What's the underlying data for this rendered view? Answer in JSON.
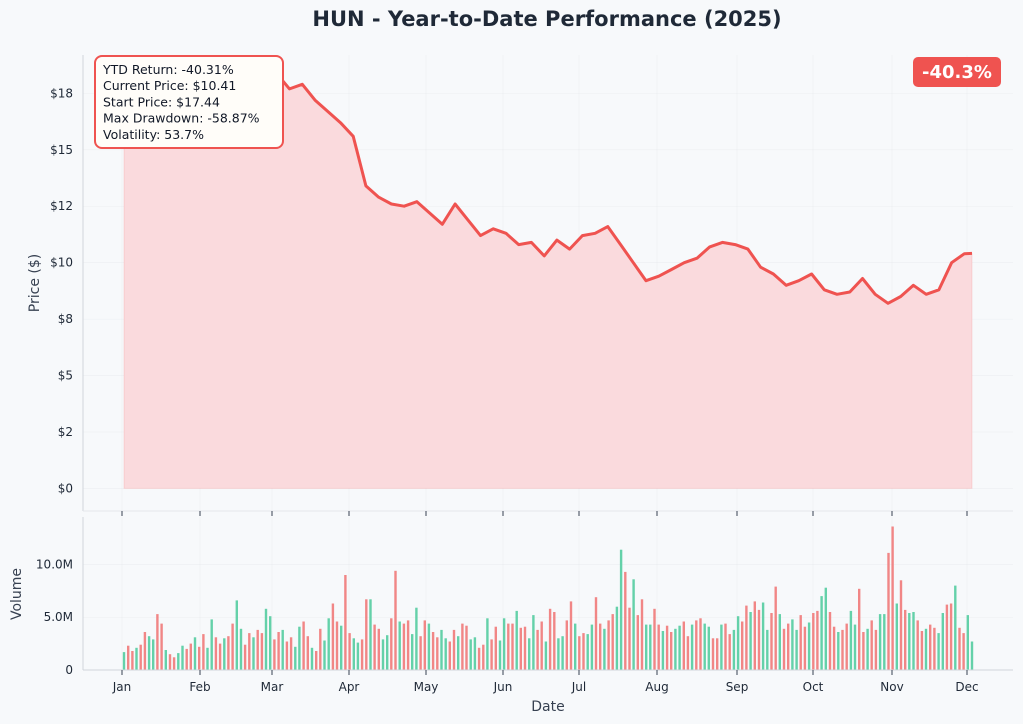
{
  "chart_data": {
    "type": "line",
    "title": "HUN - Year-to-Date Performance (2025)",
    "price_panel": {
      "ylabel": "Price ($)",
      "ylim": [
        -1,
        19.2
      ],
      "yticks": [
        0,
        2.5,
        5,
        7.5,
        10,
        12.5,
        15,
        17.5
      ],
      "ytick_labels": [
        "$0",
        "$2",
        "$5",
        "$8",
        "$10",
        "$12",
        "$15",
        "$18"
      ],
      "fill_color": "#fadadd",
      "line_color": "#ef5350",
      "series": [
        {
          "x": [
            0,
            5,
            10,
            15,
            20,
            25,
            30,
            35,
            40,
            45,
            50,
            55,
            58,
            60,
            62,
            65,
            70,
            75,
            80,
            85,
            90,
            95,
            100,
            105,
            110,
            115,
            120,
            125,
            130,
            135,
            140,
            145,
            150,
            155,
            160,
            165,
            170,
            175,
            180,
            185,
            190,
            195,
            200,
            205,
            210,
            215,
            220,
            225,
            230,
            235,
            240,
            245,
            250,
            255,
            260,
            265,
            270,
            275,
            280,
            285,
            290,
            295,
            300,
            305,
            310,
            315,
            320,
            325,
            330,
            333
          ],
          "y": [
            17.44,
            17.6,
            17.9,
            18.2,
            17.8,
            18.1,
            17.9,
            18.3,
            17.9,
            17.8,
            18.2,
            17.5,
            18.0,
            18.3,
            18.1,
            17.7,
            17.9,
            17.2,
            16.7,
            16.2,
            15.6,
            13.4,
            12.9,
            12.6,
            12.5,
            12.7,
            12.2,
            11.7,
            12.6,
            11.9,
            11.2,
            11.5,
            11.3,
            10.8,
            10.9,
            10.3,
            11.0,
            10.6,
            11.2,
            11.3,
            11.6,
            10.8,
            10.0,
            9.2,
            9.4,
            9.7,
            10.0,
            10.2,
            10.7,
            10.9,
            10.8,
            10.6,
            9.8,
            9.5,
            9.0,
            9.2,
            9.5,
            8.8,
            8.6,
            8.7,
            9.3,
            8.6,
            8.2,
            8.5,
            9.0,
            8.6,
            8.8,
            10.0,
            10.4,
            10.41
          ]
        }
      ]
    },
    "volume_panel": {
      "ylabel": "Volume",
      "ylim": [
        0,
        14500000
      ],
      "yticks": [
        0,
        5000000,
        10000000
      ],
      "ytick_labels": [
        "0",
        "5.0M",
        "10.0M"
      ],
      "up_color": "#5ccfa4",
      "down_color": "#f07f7f",
      "values_millions": [
        1.7,
        2.3,
        1.8,
        2.1,
        2.4,
        3.6,
        3.2,
        2.9,
        5.3,
        4.4,
        1.9,
        1.5,
        1.2,
        1.6,
        2.3,
        2.0,
        2.5,
        3.1,
        2.2,
        3.4,
        2.1,
        4.8,
        3.1,
        2.5,
        3.0,
        3.2,
        4.4,
        6.6,
        3.9,
        2.4,
        3.5,
        3.1,
        3.8,
        3.5,
        5.8,
        5.1,
        2.9,
        3.6,
        3.8,
        2.7,
        3.1,
        2.2,
        4.1,
        4.6,
        3.2,
        2.1,
        1.8,
        3.9,
        2.8,
        4.9,
        6.3,
        4.6,
        4.2,
        9.0,
        3.5,
        3.0,
        2.6,
        2.9,
        6.7,
        6.7,
        4.3,
        3.9,
        2.9,
        3.3,
        4.9,
        9.4,
        4.6,
        4.4,
        4.7,
        3.4,
        5.9,
        3.2,
        4.7,
        4.4,
        3.6,
        3.1,
        3.8,
        3.0,
        2.7,
        3.8,
        3.2,
        4.4,
        4.2,
        2.9,
        3.1,
        2.1,
        2.4,
        4.9,
        2.9,
        4.1,
        2.8,
        4.9,
        4.4,
        4.4,
        5.6,
        4.0,
        4.1,
        3.0,
        5.2,
        3.8,
        4.6,
        2.7,
        5.8,
        5.5,
        3.0,
        3.2,
        4.7,
        6.5,
        4.4,
        3.2,
        3.5,
        3.4,
        4.3,
        6.9,
        4.4,
        3.9,
        4.7,
        5.3,
        6.0,
        11.4,
        9.3,
        5.9,
        8.6,
        5.2,
        6.7,
        4.3,
        4.3,
        5.8,
        4.3,
        3.7,
        4.2,
        3.6,
        3.9,
        4.2,
        4.6,
        3.2,
        4.3,
        4.7,
        4.9,
        4.4,
        4.1,
        3.0,
        3.0,
        4.3,
        4.4,
        3.4,
        3.8,
        5.1,
        4.6,
        6.1,
        5.5,
        6.5,
        5.7,
        6.4,
        3.8,
        5.4,
        7.9,
        5.3,
        3.9,
        4.4,
        4.8,
        3.8,
        5.2,
        4.1,
        4.5,
        5.4,
        5.6,
        7.0,
        7.8,
        5.5,
        4.1,
        3.6,
        3.8,
        4.4,
        5.6,
        4.3,
        7.7,
        3.6,
        3.9,
        4.7,
        3.8,
        5.3,
        5.3,
        11.1,
        13.6,
        6.3,
        8.5,
        5.7,
        5.4,
        5.5,
        4.7,
        3.7,
        3.9,
        4.3,
        4.0,
        3.5,
        5.4,
        6.2,
        6.3,
        8.0,
        4.0,
        3.5,
        5.2,
        2.7
      ]
    },
    "xaxis": {
      "xlabel": "Date",
      "tick_labels": [
        "Jan",
        "Feb",
        "Mar",
        "Apr",
        "May",
        "Jun",
        "Jul",
        "Aug",
        "Sep",
        "Oct",
        "Nov",
        "Dec"
      ],
      "day_range": [
        0,
        333
      ]
    },
    "stats_box": {
      "lines": [
        "YTD Return: -40.31%",
        "Current Price: $10.41",
        "Start Price: $17.44",
        "Max Drawdown: -58.87%",
        "Volatility: 53.7%"
      ],
      "border_color": "#ef5350"
    },
    "badge": {
      "text": "-40.3%",
      "color": "#ef5350"
    }
  }
}
